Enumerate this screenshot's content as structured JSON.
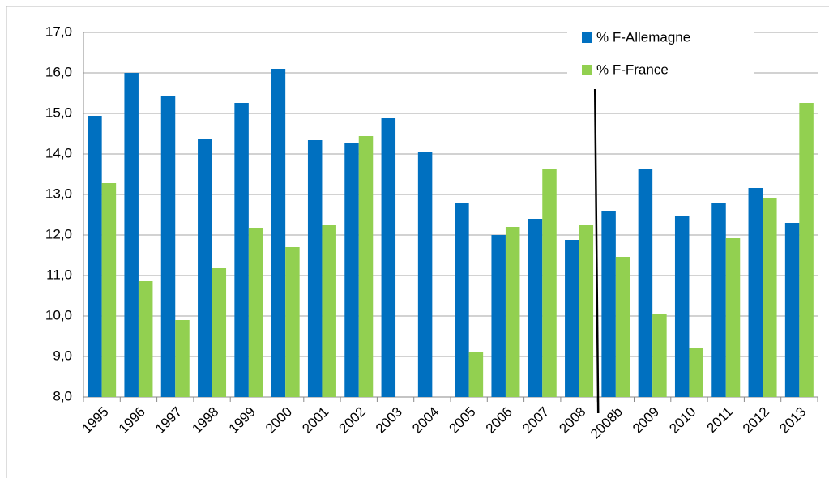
{
  "chart_data": {
    "type": "bar",
    "categories": [
      "1995",
      "1996",
      "1997",
      "1998",
      "1999",
      "2000",
      "2001",
      "2002",
      "2003",
      "2004",
      "2005",
      "2006",
      "2007",
      "2008",
      "2008b",
      "2009",
      "2010",
      "2011",
      "2012",
      "2013"
    ],
    "series": [
      {
        "name": "% F-Allemagne",
        "color": "#0070c0",
        "values": [
          14.94,
          16.0,
          15.42,
          14.38,
          15.26,
          16.1,
          14.34,
          14.26,
          14.88,
          14.06,
          12.8,
          12.0,
          12.4,
          11.88,
          12.6,
          13.62,
          12.46,
          12.8,
          13.16,
          12.3
        ]
      },
      {
        "name": "% F-France",
        "color": "#92d050",
        "values": [
          13.28,
          10.86,
          9.9,
          11.18,
          12.18,
          11.7,
          12.24,
          14.44,
          null,
          null,
          9.12,
          12.2,
          13.64,
          12.24,
          11.46,
          10.04,
          9.2,
          11.92,
          12.92,
          15.26
        ]
      }
    ],
    "ylim": [
      8,
      17
    ],
    "yticks": [
      {
        "value": 8,
        "label": "8,0"
      },
      {
        "value": 9,
        "label": "9,0"
      },
      {
        "value": 10,
        "label": "10,0"
      },
      {
        "value": 11,
        "label": "11,0"
      },
      {
        "value": 12,
        "label": "12,0"
      },
      {
        "value": 13,
        "label": "13,0"
      },
      {
        "value": 14,
        "label": "14,0"
      },
      {
        "value": 15,
        "label": "15,0"
      },
      {
        "value": 16,
        "label": "16,0"
      },
      {
        "value": 17,
        "label": "17,0"
      }
    ],
    "grid": true,
    "legend": "top-right"
  }
}
